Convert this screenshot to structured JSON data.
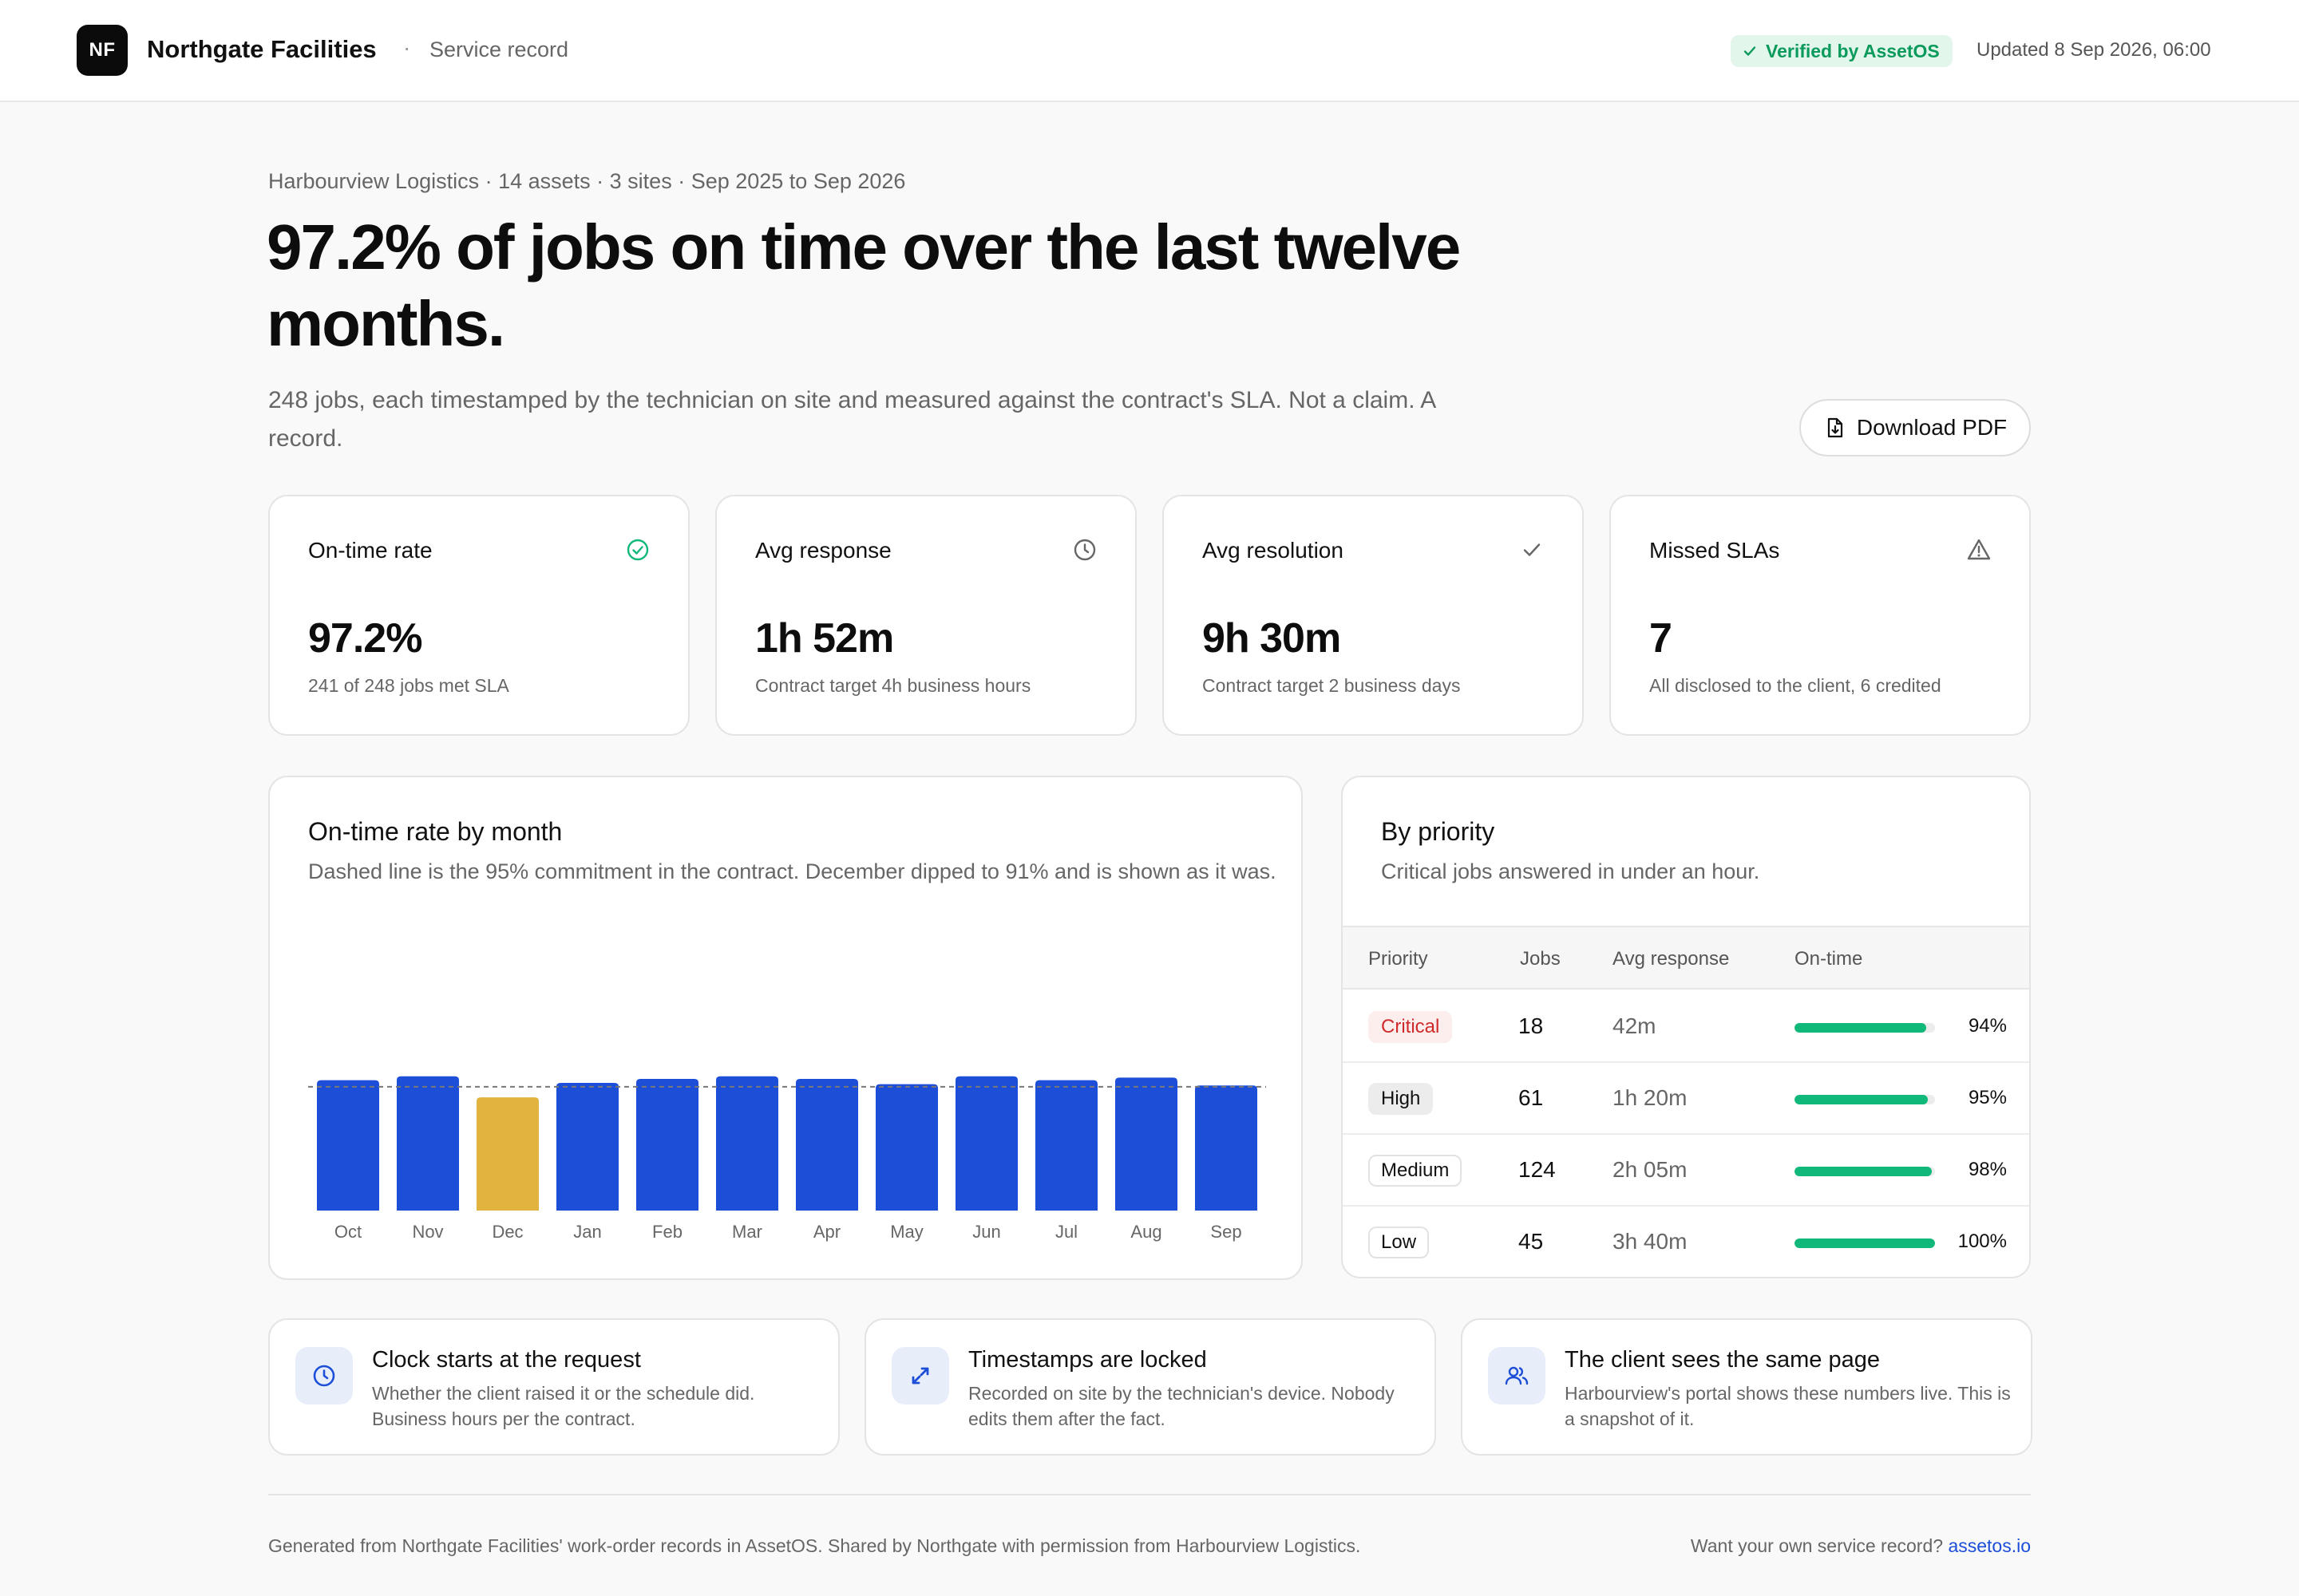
{
  "colors": {
    "accent_blue": "#1d4ed8",
    "highlight_yellow": "#e2b33e",
    "success_green": "#10b87a",
    "critical_red": "#cf2a2a"
  },
  "header": {
    "logo": "NF",
    "brand": "Northgate Facilities",
    "separator": "·",
    "subtitle": "Service record",
    "verified": "Verified by AssetOS",
    "updated": "Updated 8 Sep 2026, 06:00"
  },
  "intro": {
    "meta": "Harbourview Logistics · 14 assets · 3 sites · Sep 2025 to Sep 2026",
    "headline": "97.2% of jobs on time over the last twelve months.",
    "subline": "248 jobs, each timestamped by the technician on site and measured against the contract's SLA. Not a claim. A record.",
    "download_label": "Download PDF"
  },
  "stats": [
    {
      "label": "On-time rate",
      "icon": "check-circle-icon",
      "value": "97.2%",
      "note": "241 of 248 jobs met SLA"
    },
    {
      "label": "Avg response",
      "icon": "clock-icon",
      "value": "1h 52m",
      "note": "Contract target 4h business hours"
    },
    {
      "label": "Avg resolution",
      "icon": "check-icon",
      "value": "9h 30m",
      "note": "Contract target 2 business days"
    },
    {
      "label": "Missed SLAs",
      "icon": "warning-icon",
      "value": "7",
      "note": "All disclosed to the client, 6 credited"
    }
  ],
  "chart": {
    "title": "On-time rate by month",
    "subtitle": "Dashed line is the 95% commitment in the contract. December dipped to 91% and is shown as it was."
  },
  "chart_data": {
    "type": "bar",
    "categories": [
      "Oct",
      "Nov",
      "Dec",
      "Jan",
      "Feb",
      "Mar",
      "Apr",
      "May",
      "Jun",
      "Jul",
      "Aug",
      "Sep"
    ],
    "values": [
      97.5,
      99,
      91,
      96.5,
      98,
      99,
      98,
      96,
      99,
      97.5,
      98.5,
      95.5
    ],
    "highlight": "Dec",
    "reference_line": 95,
    "ylim": [
      0,
      100
    ],
    "grid": false
  },
  "priority": {
    "title": "By priority",
    "subtitle": "Critical jobs answered in under an hour.",
    "columns": [
      "Priority",
      "Jobs",
      "Avg response",
      "On-time"
    ],
    "rows": [
      {
        "priority": "Critical",
        "jobs": "18",
        "response": "42m",
        "ontime": 94,
        "ontime_label": "94%"
      },
      {
        "priority": "High",
        "jobs": "61",
        "response": "1h 20m",
        "ontime": 95,
        "ontime_label": "95%"
      },
      {
        "priority": "Medium",
        "jobs": "124",
        "response": "2h 05m",
        "ontime": 98,
        "ontime_label": "98%"
      },
      {
        "priority": "Low",
        "jobs": "45",
        "response": "3h 40m",
        "ontime": 100,
        "ontime_label": "100%"
      }
    ]
  },
  "info": [
    {
      "icon": "clock-icon",
      "title": "Clock starts at the request",
      "text": "Whether the client raised it or the schedule did. Business hours per the contract."
    },
    {
      "icon": "lock-arrows-icon",
      "title": "Timestamps are locked",
      "text": "Recorded on site by the technician's device. Nobody edits them after the fact."
    },
    {
      "icon": "users-icon",
      "title": "The client sees the same page",
      "text": "Harbourview's portal shows these numbers live. This is a snapshot of it."
    }
  ],
  "footer": {
    "left": "Generated from Northgate Facilities' work-order records in AssetOS. Shared by Northgate with permission from Harbourview Logistics.",
    "right_prefix": "Want your own service record?",
    "link": "assetos.io"
  }
}
